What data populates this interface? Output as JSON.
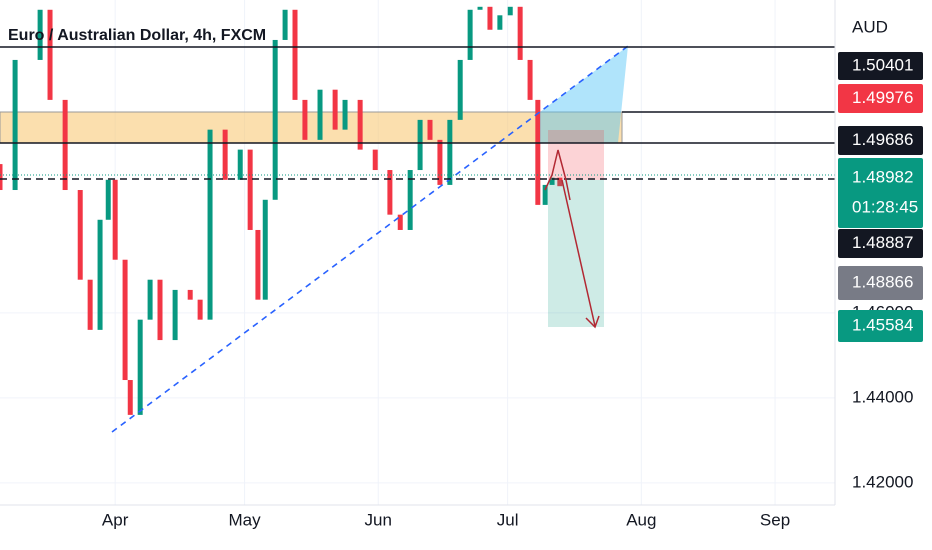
{
  "chart_data": {
    "type": "candlestick",
    "title": "Euro / Australian Dollar, 4h, FXCM",
    "currency": "AUD",
    "x": [
      4.3,
      7.8,
      13.6,
      15.9,
      19.4,
      22.9,
      25.2,
      27.5,
      29.4,
      31.0,
      33.3,
      34.5,
      36.8,
      39.1,
      41.4,
      44.9,
      48.4,
      50.7,
      53.0,
      56.5,
      60.0,
      62.3,
      64.1,
      65.8,
      68.1,
      70.4,
      72.7,
      75.0,
      78.5,
      82.0,
      84.3,
      87.8,
      91.3,
      94.7,
      97.1,
      99.4,
      101.7,
      104.0,
      106.3,
      108.6,
      111.0,
      113.3,
      115.6,
      117.9,
      120.2,
      122.6,
      124.9,
      127.2,
      129.0,
      130.7,
      132.3,
      134.1
    ],
    "open": [
      1.495,
      1.4889,
      1.5195,
      1.5313,
      1.5101,
      1.4889,
      1.4678,
      1.456,
      1.4819,
      1.4913,
      1.4725,
      1.4442,
      1.436,
      1.4584,
      1.4678,
      1.4536,
      1.4654,
      1.4631,
      1.4584,
      1.5031,
      1.4913,
      1.4984,
      1.4795,
      1.4631,
      1.4866,
      1.5242,
      1.5313,
      1.5101,
      1.5007,
      1.5125,
      1.5031,
      1.5101,
      1.4984,
      1.4936,
      1.4831,
      1.4795,
      1.4936,
      1.5054,
      1.5007,
      1.4901,
      1.5054,
      1.5195,
      1.5313,
      1.532,
      1.5266,
      1.53,
      1.532,
      1.5195,
      1.5101,
      1.4854,
      1.4901,
      1.4918
    ],
    "close": [
      1.4889,
      1.5195,
      1.5313,
      1.5101,
      1.4889,
      1.4678,
      1.456,
      1.4819,
      1.4913,
      1.4725,
      1.4442,
      1.436,
      1.4584,
      1.4678,
      1.4536,
      1.4654,
      1.4631,
      1.4584,
      1.5031,
      1.4913,
      1.4984,
      1.4795,
      1.4631,
      1.4866,
      1.5242,
      1.5313,
      1.5101,
      1.5007,
      1.5125,
      1.5031,
      1.5101,
      1.4984,
      1.4936,
      1.4831,
      1.4795,
      1.4936,
      1.5054,
      1.5007,
      1.4901,
      1.5054,
      1.5195,
      1.5313,
      1.532,
      1.5266,
      1.53,
      1.532,
      1.5195,
      1.5101,
      1.4854,
      1.4901,
      1.4918,
      1.4898
    ],
    "up_color": "#089981",
    "down_color": "#f23645",
    "xlim": [
      4.3,
      197.9
    ],
    "xticks": [
      {
        "value": 31,
        "label": "Apr"
      },
      {
        "value": 61,
        "label": "May"
      },
      {
        "value": 92,
        "label": "Jun"
      },
      {
        "value": 122,
        "label": "Jul"
      },
      {
        "value": 153,
        "label": "Aug"
      },
      {
        "value": 184,
        "label": "Sep"
      }
    ],
    "ylim": [
      1.4148,
      1.5336
    ],
    "yticks": [
      {
        "value": 1.42,
        "label": "1.42000"
      },
      {
        "value": 1.44,
        "label": "1.44000"
      },
      {
        "value": 1.46,
        "label": "1.46000"
      }
    ],
    "grid": true,
    "price_labels": [
      {
        "value": 1.50401,
        "color": "#131722"
      },
      {
        "value": 1.49976,
        "color": "#f23645"
      },
      {
        "value": 1.49686,
        "color": "#131722"
      },
      {
        "value": 1.48982,
        "color": "#089981"
      },
      {
        "value": 1.48887,
        "color": "#131722"
      },
      {
        "value": 1.48866,
        "color": "#787b86"
      },
      {
        "value": 1.45584,
        "color": "#089981"
      }
    ],
    "countdown": "01:28:45"
  }
}
